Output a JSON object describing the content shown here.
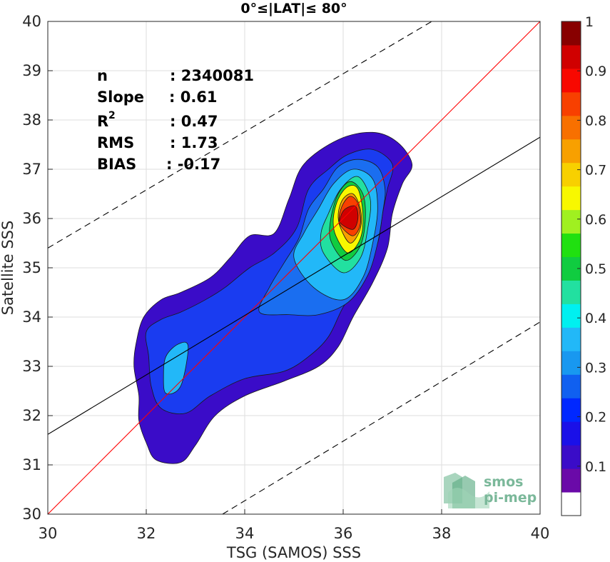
{
  "chart_data": {
    "type": "heatmap",
    "title": "0°≤|LAT|≤ 80°",
    "xlabel": "TSG (SAMOS) SSS",
    "ylabel": "Satellite SSS",
    "xlim": [
      30,
      40
    ],
    "ylim": [
      30,
      40
    ],
    "xticks": [
      "30",
      "32",
      "34",
      "36",
      "38",
      "40"
    ],
    "yticks": [
      "30",
      "31",
      "32",
      "33",
      "34",
      "35",
      "36",
      "37",
      "38",
      "39",
      "40"
    ],
    "grid": true,
    "stats": [
      {
        "label": "n",
        "value": ": 2340081"
      },
      {
        "label": "Slope",
        "value": ": 0.61"
      },
      {
        "label": "R",
        "sup": "2",
        "value": ": 0.47"
      },
      {
        "label": "RMS",
        "value": ": 1.73"
      },
      {
        "label": "BIAS",
        "value": ": -0.17"
      }
    ],
    "lines": [
      {
        "kind": "identity",
        "color": "#ff0000",
        "style": "solid",
        "points": [
          [
            30,
            30
          ],
          [
            40,
            40
          ]
        ]
      },
      {
        "kind": "regression",
        "color": "#000000",
        "style": "solid",
        "points": [
          [
            30,
            31.62
          ],
          [
            40,
            37.65
          ]
        ]
      },
      {
        "kind": "upper-bound",
        "color": "#000000",
        "style": "dashed",
        "points": [
          [
            30,
            35.4
          ],
          [
            37.8,
            40
          ]
        ]
      },
      {
        "kind": "lower-bound",
        "color": "#000000",
        "style": "dashed",
        "points": [
          [
            33.55,
            30
          ],
          [
            40,
            33.9
          ]
        ]
      }
    ],
    "colorbar": {
      "range": [
        0,
        1
      ],
      "ticks": [
        "0.1",
        "0.2",
        "0.3",
        "0.4",
        "0.5",
        "0.6",
        "0.7",
        "0.8",
        "0.9",
        "1"
      ],
      "tick_values": [
        0.1,
        0.2,
        0.3,
        0.4,
        0.5,
        0.6,
        0.7,
        0.8,
        0.9,
        1.0
      ],
      "colors": [
        "#ffffff",
        "#6a0aa8",
        "#3a0cc8",
        "#1a10e8",
        "#0028ff",
        "#1060f0",
        "#1898f0",
        "#22b8f8",
        "#00f0f0",
        "#22e0a0",
        "#10cc40",
        "#20e010",
        "#a0f020",
        "#f8f800",
        "#f8d000",
        "#f8a000",
        "#f87000",
        "#f84000",
        "#f80800",
        "#d00000",
        "#880000"
      ]
    },
    "contours": [
      {
        "level": 0.05,
        "color": "#3a0cc8",
        "points": [
          [
            32.2,
            31.1
          ],
          [
            32.7,
            31.05
          ],
          [
            33.0,
            31.4
          ],
          [
            33.4,
            32.0
          ],
          [
            34.0,
            32.4
          ],
          [
            34.8,
            32.7
          ],
          [
            35.5,
            33.0
          ],
          [
            35.9,
            33.4
          ],
          [
            36.2,
            34.0
          ],
          [
            36.6,
            34.7
          ],
          [
            36.9,
            35.4
          ],
          [
            37.0,
            36.1
          ],
          [
            37.2,
            36.7
          ],
          [
            37.4,
            37.1
          ],
          [
            37.1,
            37.55
          ],
          [
            36.6,
            37.75
          ],
          [
            35.9,
            37.6
          ],
          [
            35.2,
            37.1
          ],
          [
            34.9,
            36.4
          ],
          [
            34.6,
            35.7
          ],
          [
            34.1,
            35.65
          ],
          [
            33.7,
            35.2
          ],
          [
            33.3,
            34.8
          ],
          [
            32.7,
            34.5
          ],
          [
            32.3,
            34.35
          ],
          [
            31.95,
            34.0
          ],
          [
            31.8,
            33.5
          ],
          [
            31.75,
            33.0
          ],
          [
            31.85,
            32.4
          ],
          [
            31.85,
            31.9
          ],
          [
            32.0,
            31.45
          ]
        ]
      },
      {
        "level": 0.15,
        "color": "#1a3cf0",
        "points": [
          [
            32.3,
            32.15
          ],
          [
            32.8,
            32.05
          ],
          [
            33.3,
            32.4
          ],
          [
            34.0,
            32.75
          ],
          [
            34.8,
            32.9
          ],
          [
            35.3,
            33.2
          ],
          [
            35.7,
            33.6
          ],
          [
            36.0,
            34.2
          ],
          [
            36.4,
            34.8
          ],
          [
            36.7,
            35.5
          ],
          [
            36.8,
            36.1
          ],
          [
            36.9,
            36.6
          ],
          [
            37.0,
            37.1
          ],
          [
            36.6,
            37.4
          ],
          [
            36.1,
            37.3
          ],
          [
            35.7,
            37.0
          ],
          [
            35.3,
            36.6
          ],
          [
            35.05,
            35.8
          ],
          [
            34.6,
            35.3
          ],
          [
            34.1,
            35.0
          ],
          [
            33.6,
            34.6
          ],
          [
            33.2,
            34.35
          ],
          [
            32.7,
            34.1
          ],
          [
            32.3,
            33.95
          ],
          [
            32.0,
            33.7
          ],
          [
            32.05,
            33.2
          ],
          [
            32.1,
            32.6
          ]
        ]
      },
      {
        "level": 0.2,
        "color": "#1a6ef0",
        "points": [
          [
            34.3,
            34.1
          ],
          [
            34.9,
            34.05
          ],
          [
            35.5,
            34.05
          ],
          [
            36.1,
            34.3
          ],
          [
            36.5,
            34.85
          ],
          [
            36.7,
            35.5
          ],
          [
            36.8,
            36.1
          ],
          [
            36.85,
            36.6
          ],
          [
            36.7,
            37.05
          ],
          [
            36.3,
            37.2
          ],
          [
            35.9,
            37.05
          ],
          [
            35.6,
            36.6
          ],
          [
            35.3,
            36.2
          ],
          [
            35.1,
            35.6
          ],
          [
            34.8,
            35.1
          ],
          [
            34.5,
            34.6
          ]
        ]
      },
      {
        "level": 0.3,
        "color": "#22b8f8",
        "points": [
          [
            32.4,
            32.45
          ],
          [
            32.7,
            32.6
          ],
          [
            32.85,
            33.4
          ],
          [
            32.65,
            33.45
          ],
          [
            32.4,
            33.2
          ],
          [
            32.35,
            32.8
          ]
        ]
      },
      {
        "level": 0.3,
        "color": "#22b8f8",
        "points": [
          [
            35.0,
            35.2
          ],
          [
            35.4,
            34.6
          ],
          [
            36.0,
            34.35
          ],
          [
            36.4,
            34.8
          ],
          [
            36.6,
            35.5
          ],
          [
            36.7,
            36.2
          ],
          [
            36.6,
            36.8
          ],
          [
            36.2,
            37.0
          ],
          [
            35.8,
            36.7
          ],
          [
            35.5,
            36.2
          ],
          [
            35.2,
            35.7
          ]
        ]
      },
      {
        "level": 0.4,
        "color": "#22e0a0",
        "points": [
          [
            35.6,
            35.3
          ],
          [
            36.0,
            34.9
          ],
          [
            36.35,
            35.2
          ],
          [
            36.5,
            35.8
          ],
          [
            36.55,
            36.4
          ],
          [
            36.3,
            36.85
          ],
          [
            35.95,
            36.6
          ],
          [
            35.7,
            36.1
          ],
          [
            35.55,
            35.7
          ]
        ]
      },
      {
        "level": 0.5,
        "color": "#10cc40",
        "points": [
          [
            35.75,
            35.55
          ],
          [
            36.05,
            35.15
          ],
          [
            36.35,
            35.45
          ],
          [
            36.45,
            36.0
          ],
          [
            36.4,
            36.5
          ],
          [
            36.15,
            36.75
          ],
          [
            35.9,
            36.5
          ],
          [
            35.75,
            36.0
          ]
        ]
      },
      {
        "level": 0.6,
        "color": "#f8f800",
        "points": [
          [
            35.85,
            35.65
          ],
          [
            36.1,
            35.3
          ],
          [
            36.35,
            35.6
          ],
          [
            36.4,
            36.1
          ],
          [
            36.3,
            36.6
          ],
          [
            36.1,
            36.65
          ],
          [
            35.9,
            36.4
          ],
          [
            35.8,
            36.0
          ]
        ]
      },
      {
        "level": 0.7,
        "color": "#f8a000",
        "points": [
          [
            35.95,
            35.8
          ],
          [
            36.15,
            35.5
          ],
          [
            36.35,
            35.8
          ],
          [
            36.35,
            36.2
          ],
          [
            36.2,
            36.5
          ],
          [
            36.0,
            36.4
          ],
          [
            35.9,
            36.1
          ]
        ]
      },
      {
        "level": 0.8,
        "color": "#f84000",
        "points": [
          [
            35.95,
            35.85
          ],
          [
            36.2,
            35.65
          ],
          [
            36.35,
            35.9
          ],
          [
            36.3,
            36.3
          ],
          [
            36.15,
            36.45
          ],
          [
            36.0,
            36.3
          ],
          [
            35.92,
            36.05
          ]
        ]
      },
      {
        "level": 0.9,
        "color": "#d00000",
        "points": [
          [
            35.95,
            35.9
          ],
          [
            36.2,
            35.78
          ],
          [
            36.3,
            36.0
          ],
          [
            36.25,
            36.25
          ],
          [
            36.05,
            36.2
          ],
          [
            35.95,
            36.05
          ]
        ]
      }
    ],
    "logo_lines": [
      "smos",
      "pi-mep"
    ],
    "logo_color": "#7bb89a"
  }
}
